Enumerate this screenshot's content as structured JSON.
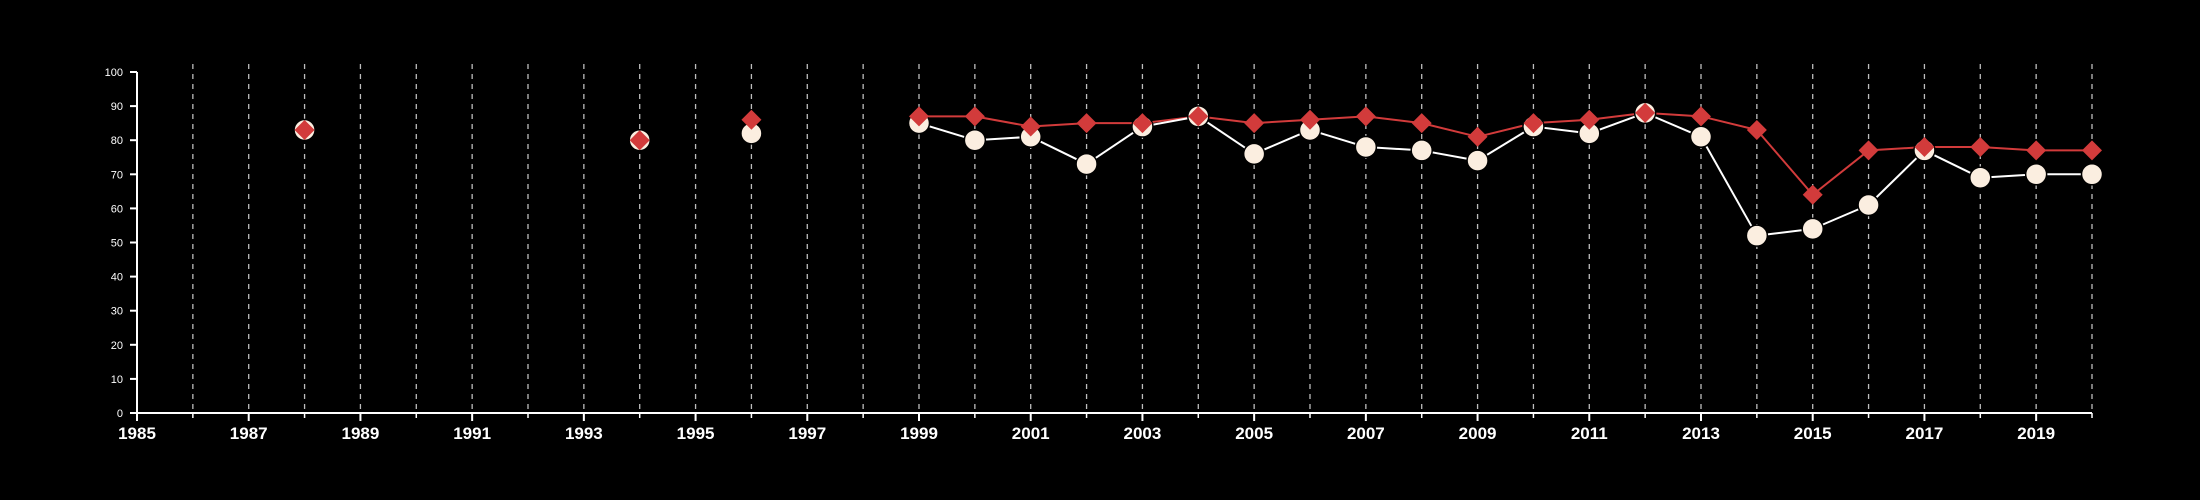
{
  "chart_data": {
    "type": "line",
    "title": "",
    "xlabel": "",
    "ylabel": "",
    "xlim": [
      1985,
      2020
    ],
    "ylim": [
      0,
      100
    ],
    "y_ticks": [
      0,
      10,
      20,
      30,
      40,
      50,
      60,
      70,
      80,
      90,
      100
    ],
    "x_tick_labels": [
      "1985",
      "1987",
      "1989",
      "1991",
      "1993",
      "1995",
      "1997",
      "1999",
      "2001",
      "2003",
      "2005",
      "2007",
      "2009",
      "2011",
      "2013",
      "2015",
      "2017",
      "2019"
    ],
    "x_minor_ticks": [
      1986,
      1988,
      1990,
      1992,
      1994,
      1996,
      1998,
      2000,
      2002,
      2004,
      2006,
      2008,
      2010,
      2012,
      2014,
      2016,
      2018,
      2020
    ],
    "grid": "vertical dashed lines at every year from 1986 to 2020",
    "background": "#000000",
    "series": [
      {
        "marker": "circle",
        "color": "#fbeee0",
        "line_color": "#ffffff",
        "points": [
          {
            "x": 1988,
            "y": 83
          },
          {
            "x": 1994,
            "y": 80
          },
          {
            "x": 1996,
            "y": 82
          },
          {
            "x": 1999,
            "y": 85
          },
          {
            "x": 2000,
            "y": 80
          },
          {
            "x": 2001,
            "y": 81
          },
          {
            "x": 2002,
            "y": 73
          },
          {
            "x": 2003,
            "y": 84
          },
          {
            "x": 2004,
            "y": 87
          },
          {
            "x": 2005,
            "y": 76
          },
          {
            "x": 2006,
            "y": 83
          },
          {
            "x": 2007,
            "y": 78
          },
          {
            "x": 2008,
            "y": 77
          },
          {
            "x": 2009,
            "y": 74
          },
          {
            "x": 2010,
            "y": 84
          },
          {
            "x": 2011,
            "y": 82
          },
          {
            "x": 2012,
            "y": 88
          },
          {
            "x": 2013,
            "y": 81
          },
          {
            "x": 2014,
            "y": 52
          },
          {
            "x": 2015,
            "y": 54
          },
          {
            "x": 2016,
            "y": 61
          },
          {
            "x": 2017,
            "y": 77
          },
          {
            "x": 2018,
            "y": 69
          },
          {
            "x": 2019,
            "y": 70
          },
          {
            "x": 2020,
            "y": 70
          }
        ]
      },
      {
        "marker": "diamond",
        "color": "#d23b3b",
        "line_color": "#d23b3b",
        "points": [
          {
            "x": 1988,
            "y": 83
          },
          {
            "x": 1994,
            "y": 80
          },
          {
            "x": 1996,
            "y": 86
          },
          {
            "x": 1999,
            "y": 87
          },
          {
            "x": 2000,
            "y": 87
          },
          {
            "x": 2001,
            "y": 84
          },
          {
            "x": 2002,
            "y": 85
          },
          {
            "x": 2003,
            "y": 85
          },
          {
            "x": 2004,
            "y": 87
          },
          {
            "x": 2005,
            "y": 85
          },
          {
            "x": 2006,
            "y": 86
          },
          {
            "x": 2007,
            "y": 87
          },
          {
            "x": 2008,
            "y": 85
          },
          {
            "x": 2009,
            "y": 81
          },
          {
            "x": 2010,
            "y": 85
          },
          {
            "x": 2011,
            "y": 86
          },
          {
            "x": 2012,
            "y": 88
          },
          {
            "x": 2013,
            "y": 87
          },
          {
            "x": 2014,
            "y": 83
          },
          {
            "x": 2015,
            "y": 64
          },
          {
            "x": 2016,
            "y": 77
          },
          {
            "x": 2017,
            "y": 78
          },
          {
            "x": 2018,
            "y": 78
          },
          {
            "x": 2019,
            "y": 77
          },
          {
            "x": 2020,
            "y": 77
          }
        ]
      }
    ]
  }
}
